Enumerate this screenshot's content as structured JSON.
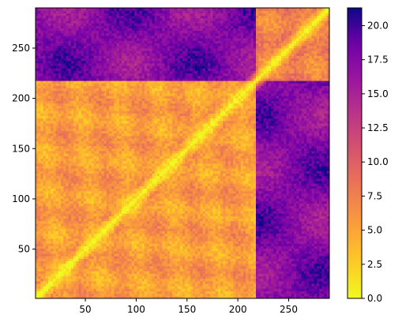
{
  "chart_data": {
    "type": "heatmap",
    "title": "",
    "xlabel": "",
    "ylabel": "",
    "xlim": [
      1,
      290
    ],
    "ylim": [
      1,
      290
    ],
    "x_ticks": [
      50,
      100,
      150,
      200,
      250
    ],
    "y_ticks": [
      50,
      100,
      150,
      200,
      250
    ],
    "colormap": "plasma_r",
    "colorbar": {
      "min": 0.0,
      "max": 21.3,
      "ticks": [
        "0.0",
        "2.5",
        "5.0",
        "7.5",
        "10.0",
        "12.5",
        "15.0",
        "17.5",
        "20.0"
      ],
      "tick_values": [
        0.0,
        2.5,
        5.0,
        7.5,
        10.0,
        12.5,
        15.0,
        17.5,
        20.0
      ]
    },
    "diagonal_value": 0.0,
    "block_boundaries": [
      218
    ],
    "region_means": {
      "block_1_within": 5.5,
      "block_2_within": 7.5,
      "between_blocks": 17.5
    },
    "grid": false
  }
}
